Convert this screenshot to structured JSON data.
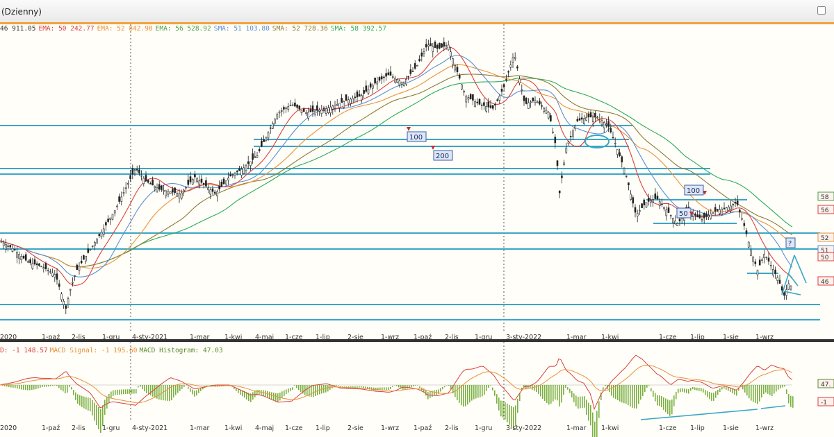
{
  "window": {
    "title": "(Dzienny)"
  },
  "colors": {
    "price": "#222222",
    "ema50": "#d94040",
    "ema52": "#e8903a",
    "ema56": "#4aa04a",
    "sma51": "#5a8fd6",
    "sma52": "#8b7a3a",
    "sma58": "#2bab5a",
    "support": "#3aa6c8",
    "macd": "#d94040",
    "signal": "#e8903a",
    "hist": "#7ab040"
  },
  "legend": [
    {
      "label": "",
      "value": "46 911.05",
      "color": "#333333"
    },
    {
      "label": "EMA: 50",
      "value": "242.77",
      "color": "#d94040"
    },
    {
      "label": "EMA: 52",
      "value": "842.98",
      "color": "#e8903a"
    },
    {
      "label": "EMA: 56",
      "value": "528.92",
      "color": "#4aa04a"
    },
    {
      "label": "SMA: 51",
      "value": "103.80",
      "color": "#5a8fd6"
    },
    {
      "label": "SMA: 52",
      "value": "728.36",
      "color": "#8b7a3a"
    },
    {
      "label": "SMA: 58",
      "value": "392.57",
      "color": "#2bab5a"
    }
  ],
  "macd_legend": [
    {
      "label": "D:",
      "value": "-1 148.57",
      "color": "#d94040"
    },
    {
      "label": "MACD Signal:",
      "value": "-1 195.60",
      "color": "#e8903a"
    },
    {
      "label": "MACD Histogram:",
      "value": "47.03",
      "color": "#5a8a2a"
    }
  ],
  "chart_data": [
    {
      "type": "candlestick",
      "title": "",
      "x_ticks": [
        "2020",
        "1-paź",
        "2-lis",
        "1-gru",
        "4-sty-2021",
        "1-mar",
        "1-kwi",
        "4-maj",
        "1-cze",
        "1-lip",
        "2-sie",
        "1-wrz",
        "1-paź",
        "2-lis",
        "1-gru",
        "3-sty-2022",
        "1-mar",
        "1-kwi",
        "1-cze",
        "1-lip",
        "1-sie",
        "1-wrz"
      ],
      "y_tags": [
        "58",
        "56",
        "52",
        "51",
        "50",
        "46"
      ],
      "close_path": [
        [
          0,
          43000
        ],
        [
          20,
          42000
        ],
        [
          40,
          40500
        ],
        [
          60,
          40000
        ],
        [
          80,
          39000
        ],
        [
          95,
          35000
        ],
        [
          100,
          37000
        ],
        [
          110,
          39500
        ],
        [
          130,
          42000
        ],
        [
          150,
          44500
        ],
        [
          165,
          46500
        ],
        [
          180,
          49000
        ],
        [
          195,
          51500
        ],
        [
          210,
          50000
        ],
        [
          230,
          49000
        ],
        [
          260,
          48500
        ],
        [
          280,
          50500
        ],
        [
          310,
          48500
        ],
        [
          330,
          50500
        ],
        [
          350,
          51500
        ],
        [
          370,
          53000
        ],
        [
          385,
          55500
        ],
        [
          400,
          58000
        ],
        [
          420,
          59000
        ],
        [
          440,
          58000
        ],
        [
          470,
          58500
        ],
        [
          500,
          59500
        ],
        [
          520,
          60000
        ],
        [
          540,
          61500
        ],
        [
          560,
          62500
        ],
        [
          580,
          61500
        ],
        [
          600,
          63500
        ],
        [
          615,
          66000
        ],
        [
          630,
          65500
        ],
        [
          645,
          66000
        ],
        [
          655,
          63500
        ],
        [
          670,
          60000
        ],
        [
          690,
          59000
        ],
        [
          710,
          58500
        ],
        [
          725,
          61000
        ],
        [
          740,
          65000
        ],
        [
          755,
          59000
        ],
        [
          770,
          59500
        ],
        [
          790,
          58000
        ],
        [
          800,
          54000
        ],
        [
          805,
          48500
        ],
        [
          815,
          54000
        ],
        [
          830,
          57000
        ],
        [
          845,
          57500
        ],
        [
          860,
          57500
        ],
        [
          875,
          56500
        ],
        [
          885,
          54500
        ],
        [
          900,
          51000
        ],
        [
          915,
          46000
        ],
        [
          930,
          47500
        ],
        [
          945,
          48000
        ],
        [
          960,
          46500
        ],
        [
          975,
          45000
        ],
        [
          990,
          46500
        ],
        [
          1010,
          45500
        ],
        [
          1030,
          46500
        ],
        [
          1050,
          47000
        ],
        [
          1060,
          47500
        ],
        [
          1070,
          45000
        ],
        [
          1080,
          42000
        ],
        [
          1090,
          39500
        ],
        [
          1100,
          41500
        ],
        [
          1110,
          40000
        ],
        [
          1120,
          38500
        ],
        [
          1128,
          36500
        ],
        [
          1135,
          38000
        ],
        [
          1140,
          37500
        ]
      ],
      "levels": [
        58750,
        57500,
        57000,
        53500,
        53000,
        45500,
        43000,
        35000,
        33000,
        60000
      ]
    },
    {
      "type": "bar",
      "title": "MACD",
      "series_names": [
        "MACD",
        "MACD Signal",
        "MACD Histogram"
      ],
      "right_labels": [
        "47.",
        "-1"
      ]
    }
  ]
}
